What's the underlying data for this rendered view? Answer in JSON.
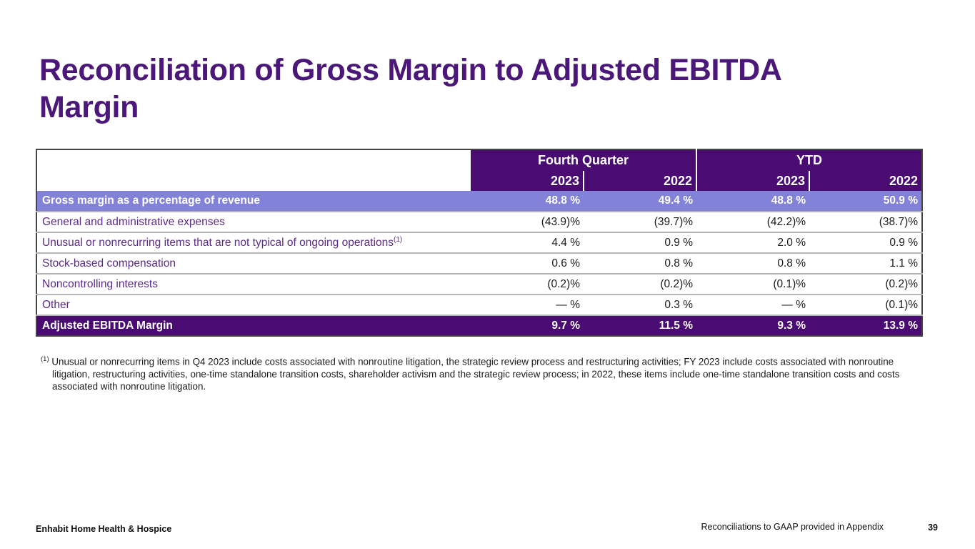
{
  "slide": {
    "title": "Reconciliation of Gross Margin to Adjusted EBITDA Margin",
    "footnote": {
      "marker": "(1)",
      "text": "Unusual or nonrecurring items in Q4 2023 include costs associated with nonroutine litigation, the strategic review process and restructuring activities; FY 2023 include costs associated with nonroutine litigation, restructuring activities, one-time standalone transition costs, shareholder activism and the strategic review process; in 2022, these items include one-time standalone transition costs and costs associated with nonroutine litigation."
    },
    "footer_left": "Enhabit Home Health & Hospice",
    "footer_right": "Reconciliations to GAAP provided in Appendix",
    "page_number": "39"
  },
  "table": {
    "column_groups": [
      {
        "label": "Fourth Quarter",
        "years": [
          "2023",
          "2022"
        ]
      },
      {
        "label": "YTD",
        "years": [
          "2023",
          "2022"
        ]
      }
    ],
    "rows": [
      {
        "label": "Gross margin as a percentage of revenue",
        "style": "light",
        "values": [
          "48.8 %",
          "49.4 %",
          "48.8 %",
          "50.9 %"
        ]
      },
      {
        "label": "General and administrative expenses",
        "style": "normal",
        "values": [
          "(43.9)%",
          "(39.7)%",
          "(42.2)%",
          "(38.7)%"
        ]
      },
      {
        "label": "Unusual or nonrecurring items that are not typical of ongoing operations",
        "superscript": "(1)",
        "style": "normal",
        "values": [
          "4.4 %",
          "0.9 %",
          "2.0 %",
          "0.9 %"
        ]
      },
      {
        "label": "Stock-based compensation",
        "style": "normal",
        "values": [
          "0.6 %",
          "0.8 %",
          "0.8 %",
          "1.1 %"
        ]
      },
      {
        "label": "Noncontrolling interests",
        "style": "normal",
        "values": [
          "(0.2)%",
          "(0.2)%",
          "(0.1)%",
          "(0.2)%"
        ]
      },
      {
        "label": "Other",
        "style": "normal",
        "values": [
          "— %",
          "0.3 %",
          "— %",
          "(0.1)%"
        ]
      },
      {
        "label": "Adjusted EBITDA Margin",
        "style": "dark",
        "values": [
          "9.7 %",
          "11.5 %",
          "9.3 %",
          "13.9 %"
        ]
      }
    ]
  },
  "colors": {
    "title_purple": "#4b1778",
    "header_purple": "#4a0c72",
    "light_purple_row": "#8182d8",
    "label_purple": "#5b2b87",
    "body_text": "#1a1a1a"
  }
}
